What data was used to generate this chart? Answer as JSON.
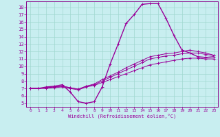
{
  "xlabel": "Windchill (Refroidissement éolien,°C)",
  "bg_color": "#c8eef0",
  "grid_color": "#a0d8d0",
  "line_color": "#990099",
  "spine_color": "#880088",
  "x_ticks": [
    0,
    1,
    2,
    3,
    4,
    5,
    6,
    7,
    8,
    9,
    10,
    11,
    12,
    13,
    14,
    15,
    16,
    17,
    18,
    19,
    20,
    21,
    22,
    23
  ],
  "y_ticks": [
    5,
    6,
    7,
    8,
    9,
    10,
    11,
    12,
    13,
    14,
    15,
    16,
    17,
    18
  ],
  "ylim": [
    4.5,
    18.8
  ],
  "xlim": [
    -0.5,
    23.5
  ],
  "series": [
    [
      7.0,
      7.0,
      7.2,
      7.3,
      7.5,
      6.5,
      5.2,
      5.0,
      5.2,
      7.2,
      10.3,
      13.0,
      15.8,
      17.0,
      18.4,
      18.5,
      18.5,
      16.5,
      14.2,
      12.2,
      11.8,
      11.3,
      11.2,
      11.3
    ],
    [
      7.0,
      7.0,
      7.1,
      7.2,
      7.3,
      7.1,
      6.9,
      7.3,
      7.6,
      8.2,
      8.7,
      9.2,
      9.8,
      10.3,
      10.8,
      11.3,
      11.5,
      11.7,
      11.8,
      12.0,
      12.2,
      12.0,
      11.8,
      11.5
    ],
    [
      7.0,
      7.0,
      7.1,
      7.2,
      7.3,
      7.1,
      6.9,
      7.3,
      7.5,
      8.0,
      8.5,
      9.0,
      9.5,
      10.0,
      10.5,
      11.0,
      11.2,
      11.4,
      11.5,
      11.7,
      11.8,
      11.8,
      11.6,
      11.5
    ],
    [
      7.0,
      7.0,
      7.0,
      7.1,
      7.2,
      7.0,
      6.8,
      7.2,
      7.4,
      7.8,
      8.2,
      8.6,
      9.0,
      9.4,
      9.8,
      10.2,
      10.4,
      10.6,
      10.8,
      11.0,
      11.1,
      11.1,
      11.0,
      11.0
    ]
  ]
}
